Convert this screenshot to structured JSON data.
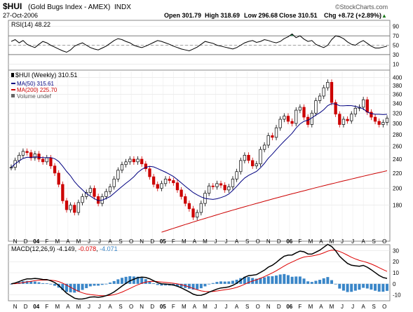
{
  "header": {
    "symbol": "$HUI",
    "name": "(Gold Bugs Index - AMEX)",
    "exchange": "INDX",
    "date": "27-Oct-2006",
    "open": "Open 301.79",
    "high": "High 318.69",
    "low": "Low 296.68",
    "close": "Close 310.51",
    "chg": "Chg +8.72 (+2.89%)",
    "chg_arrow": "▲",
    "credit": "©StockCharts.com"
  },
  "colors": {
    "up": "#000000",
    "down": "#cc0000",
    "ma50": "#000080",
    "ma200": "#cc0000",
    "hist": "#3a86c8",
    "rsiFill": "#2e8b57",
    "macdSignal": "#dd0000"
  },
  "chart_data": [
    {
      "type": "line",
      "title": "RSI(14) 48.22",
      "ylim": [
        0,
        100
      ],
      "yticks": [
        10,
        30,
        50,
        70,
        90
      ],
      "levels": [
        30,
        70
      ],
      "series": [
        {
          "name": "RSI(14)",
          "values": [
            58,
            62,
            55,
            60,
            52,
            48,
            45,
            52,
            58,
            55,
            50,
            46,
            42,
            38,
            35,
            40,
            48,
            52,
            55,
            50,
            45,
            42,
            40,
            44,
            48,
            54,
            60,
            64,
            62,
            58,
            55,
            50,
            47,
            45,
            48,
            52,
            56,
            60,
            58,
            55,
            52,
            48,
            45,
            42,
            40,
            38,
            42,
            46,
            52,
            58,
            56,
            54,
            50,
            48,
            46,
            44,
            42,
            45,
            50,
            55,
            58,
            60,
            56,
            58,
            62,
            60,
            57,
            55,
            58,
            64,
            68,
            74,
            66,
            70,
            63,
            58,
            60,
            52,
            48,
            45,
            50,
            62,
            70,
            68,
            64,
            57,
            52,
            50,
            56,
            60,
            54,
            48,
            44,
            44,
            46,
            48
          ]
        }
      ]
    },
    {
      "type": "candlestick",
      "title": "$HUI (Weekly) 310.51",
      "scale": "log",
      "ylim": [
        145,
        415
      ],
      "yticks": [
        180,
        200,
        220,
        240,
        260,
        280,
        300,
        320,
        340,
        360,
        380,
        400
      ],
      "xticks": [
        "N",
        "D",
        "04",
        "F",
        "M",
        "A",
        "M",
        "J",
        "J",
        "A",
        "S",
        "O",
        "N",
        "D",
        "05",
        "F",
        "M",
        "A",
        "M",
        "J",
        "J",
        "A",
        "S",
        "O",
        "N",
        "D",
        "06",
        "F",
        "M",
        "A",
        "M",
        "J",
        "J",
        "A",
        "S",
        "O"
      ],
      "legend": [
        {
          "name": "$HUI (Weekly) 310.51",
          "color": "#000000"
        },
        {
          "name": "MA(50) 315.61",
          "color": "#000080"
        },
        {
          "name": "MA(200) 225.70",
          "color": "#cc0000"
        },
        {
          "name": "Volume undef",
          "color": "#666666"
        }
      ],
      "close": [
        228,
        238,
        246,
        252,
        250,
        242,
        248,
        240,
        236,
        242,
        230,
        220,
        205,
        185,
        175,
        180,
        172,
        183,
        190,
        195,
        200,
        190,
        182,
        190,
        196,
        202,
        212,
        224,
        232,
        236,
        240,
        236,
        240,
        233,
        226,
        215,
        205,
        200,
        206,
        212,
        210,
        207,
        198,
        190,
        182,
        176,
        167,
        172,
        182,
        194,
        203,
        202,
        206,
        204,
        198,
        202,
        212,
        222,
        238,
        246,
        238,
        230,
        233,
        255,
        262,
        278,
        275,
        292,
        308,
        314,
        304,
        300,
        326,
        332,
        312,
        298,
        320,
        346,
        356,
        375,
        388,
        342,
        318,
        298,
        308,
        305,
        318,
        330,
        332,
        348,
        322,
        312,
        304,
        298,
        302,
        310
      ],
      "series": [
        {
          "name": "MA(50) 315.61",
          "values": [
            null,
            null,
            null,
            null,
            null,
            null,
            null,
            null,
            null,
            null,
            null,
            null,
            null,
            null,
            null,
            null,
            null,
            null,
            null,
            null,
            null,
            null,
            null,
            null,
            null,
            null,
            null,
            null,
            null,
            null,
            null,
            null,
            null,
            null,
            null,
            null,
            null,
            null,
            null,
            null,
            null,
            null,
            null,
            null,
            null,
            null,
            null,
            null,
            null,
            null,
            null,
            null,
            null,
            null,
            null,
            null,
            null,
            null,
            null,
            null,
            null,
            null,
            null,
            null,
            null,
            null,
            null,
            null,
            null,
            null,
            null,
            null,
            null,
            null,
            null,
            null,
            null,
            null,
            null,
            null,
            null,
            null,
            null,
            null,
            null,
            null,
            null,
            null,
            null,
            null,
            null,
            null,
            null,
            null,
            null,
            null
          ]
        },
        {
          "name": "MA(200) 225.70",
          "values": []
        }
      ]
    },
    {
      "type": "line",
      "title": "MACD(12,26,9) -4.149, -0.078, -4.071",
      "ylim": [
        -14,
        34
      ],
      "yticks": [
        -10,
        0,
        10,
        20,
        30
      ],
      "series": [
        {
          "name": "MACD(12,26,9)",
          "values": []
        },
        {
          "name": "Signal",
          "values": []
        },
        {
          "name": "Histogram",
          "values": []
        }
      ]
    }
  ],
  "labels": {
    "rsi_label": "RSI(14)",
    "rsi_value": "48.22",
    "price_title": "$HUI (Weekly) 310.51",
    "ma50": "MA(50) 315.61",
    "ma200": "MA(200) 225.70",
    "volume": "Volume undef",
    "macd_label": "MACD(12,26,9)",
    "macd_v1": "-4.149",
    "macd_v2": "-0.078",
    "macd_v3": "-4.071"
  }
}
